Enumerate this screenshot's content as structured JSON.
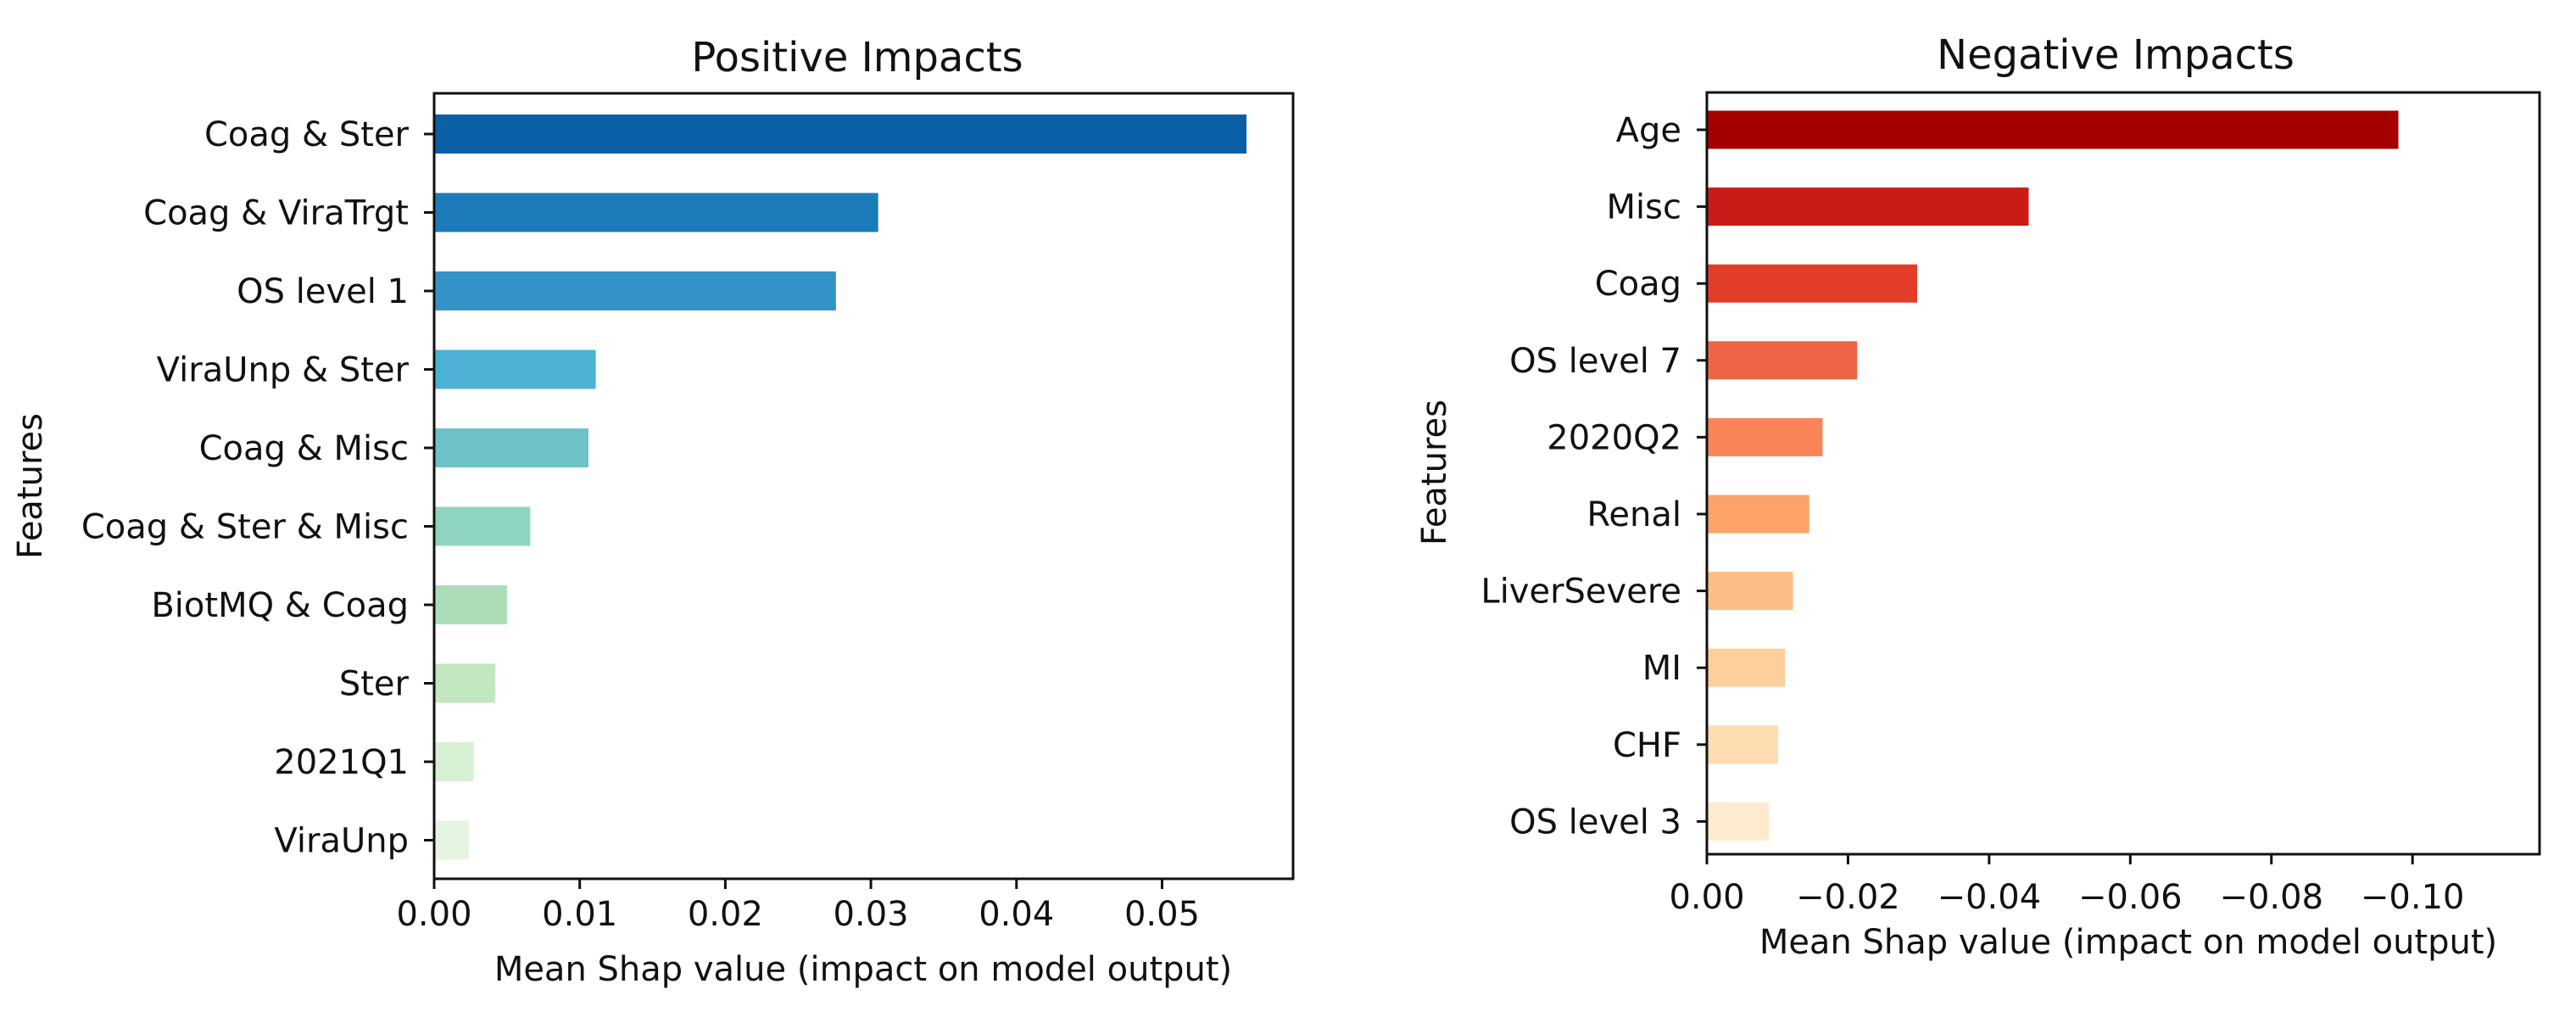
{
  "chart_data": [
    {
      "type": "bar",
      "orientation": "horizontal",
      "title": "Positive Impacts",
      "xlabel": "Mean Shap value (impact on model output)",
      "ylabel": "Features",
      "xlim": [
        0,
        0.059
      ],
      "xticks": [
        0.0,
        0.01,
        0.02,
        0.03,
        0.04,
        0.05
      ],
      "xtick_labels": [
        "0.00",
        "0.01",
        "0.02",
        "0.03",
        "0.04",
        "0.05"
      ],
      "categories": [
        "Coag & Ster",
        "Coag & ViraTrgt",
        "OS level 1",
        "ViraUnp & Ster",
        "Coag & Misc",
        "Coag & Ster & Misc",
        "BiotMQ & Coag",
        "Ster",
        "2021Q1",
        "ViraUnp"
      ],
      "values": [
        0.0558,
        0.0305,
        0.0276,
        0.0111,
        0.0106,
        0.0066,
        0.005,
        0.0042,
        0.0027,
        0.0024
      ],
      "colors": [
        "#0b5fa5",
        "#1c7bb9",
        "#3493c6",
        "#4db1d5",
        "#6dc3c8",
        "#8fd4c0",
        "#abdeb8",
        "#c2e7c1",
        "#d7efd2",
        "#e6f5e1"
      ],
      "grid": false
    },
    {
      "type": "bar",
      "orientation": "horizontal",
      "title": "Negative Impacts",
      "xlabel": "Mean Shap value (impact on model output)",
      "ylabel": "Features",
      "xlim": [
        0,
        -0.118
      ],
      "xticks": [
        0.0,
        -0.02,
        -0.04,
        -0.06,
        -0.08,
        -0.1
      ],
      "xtick_labels": [
        "0.00",
        "−0.02",
        "−0.04",
        "−0.06",
        "−0.08",
        "−0.10"
      ],
      "categories": [
        "Age",
        "Misc",
        "Coag",
        "OS level 7",
        "2020Q2",
        "Renal",
        "LiverSevere ",
        "MI",
        "CHF",
        "OS level 3"
      ],
      "values": [
        -0.098,
        -0.0456,
        -0.0298,
        -0.0213,
        -0.0164,
        -0.0145,
        -0.0122,
        -0.0111,
        -0.0101,
        -0.0088
      ],
      "colors": [
        "#a50000",
        "#cb1b16",
        "#e23d28",
        "#f06446",
        "#f88457",
        "#fca369",
        "#fdbe85",
        "#fdcf9b",
        "#fedcb2",
        "#feeacc"
      ],
      "grid": false
    }
  ]
}
